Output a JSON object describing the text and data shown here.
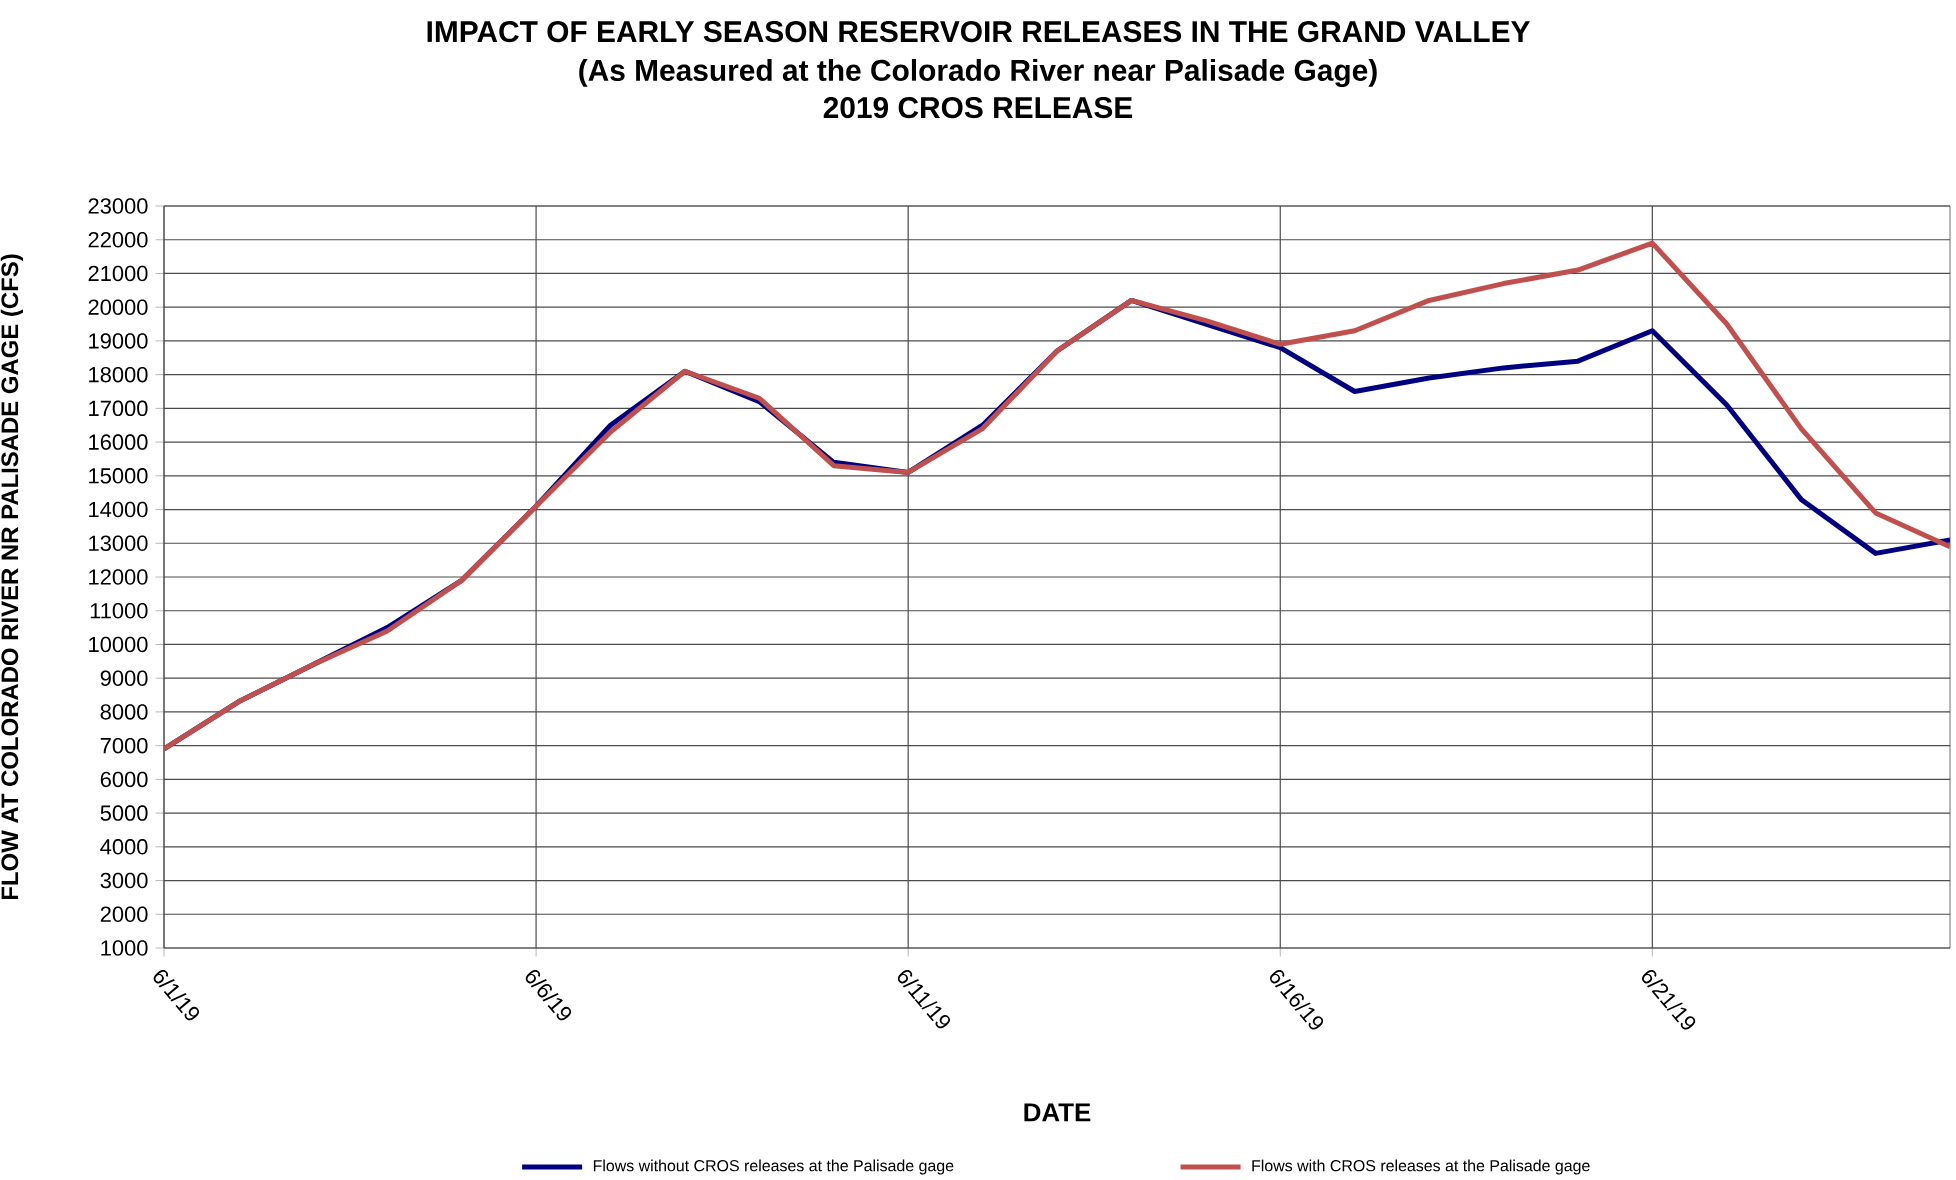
{
  "chart_data": {
    "type": "line",
    "title": "IMPACT OF EARLY SEASON RESERVOIR RELEASES IN THE GRAND VALLEY",
    "subtitle": "(As Measured at the Colorado River near Palisade Gage)",
    "annotations": [
      "2019 CROS RELEASE"
    ],
    "xlabel": "DATE",
    "ylabel": "FLOW AT COLORADO RIVER NR PALISADE GAGE (CFS)",
    "x": [
      "2019-06-01",
      "2019-06-02",
      "2019-06-03",
      "2019-06-04",
      "2019-06-05",
      "2019-06-06",
      "2019-06-07",
      "2019-06-08",
      "2019-06-09",
      "2019-06-10",
      "2019-06-11",
      "2019-06-12",
      "2019-06-13",
      "2019-06-14",
      "2019-06-15",
      "2019-06-16",
      "2019-06-17",
      "2019-06-18",
      "2019-06-19",
      "2019-06-20",
      "2019-06-21",
      "2019-06-22",
      "2019-06-23",
      "2019-06-24",
      "2019-06-25"
    ],
    "series": [
      {
        "name": "Flows without CROS releases at the Palisade gage",
        "color": "#000080",
        "values": [
          6900,
          8300,
          9400,
          10500,
          11900,
          14100,
          16500,
          18100,
          17200,
          15400,
          15100,
          16500,
          18700,
          20200,
          19500,
          18800,
          17500,
          17900,
          18200,
          18400,
          19300,
          17100,
          14300,
          12700,
          13100
        ]
      },
      {
        "name": "Flows with CROS releases at the Palisade gage",
        "color": "#c0504d",
        "values": [
          6900,
          8300,
          9400,
          10400,
          11900,
          14100,
          16300,
          18100,
          17300,
          15300,
          15100,
          16400,
          18700,
          20200,
          19600,
          18900,
          19300,
          20200,
          20700,
          21100,
          21900,
          19500,
          16400,
          13900,
          12900
        ]
      }
    ],
    "xlim": [
      "2019-06-01",
      "2019-06-25"
    ],
    "xticks": [
      {
        "value": "2019-06-01",
        "label": "6/1/19"
      },
      {
        "value": "2019-06-06",
        "label": "6/6/19"
      },
      {
        "value": "2019-06-11",
        "label": "6/11/19"
      },
      {
        "value": "2019-06-16",
        "label": "6/16/19"
      },
      {
        "value": "2019-06-21",
        "label": "6/21/19"
      }
    ],
    "ylim": [
      1000,
      23000
    ],
    "yticks": [
      1000,
      2000,
      3000,
      4000,
      5000,
      6000,
      7000,
      8000,
      9000,
      10000,
      11000,
      12000,
      13000,
      14000,
      15000,
      16000,
      17000,
      18000,
      19000,
      20000,
      21000,
      22000,
      23000
    ],
    "grid": true,
    "legend": "bottom",
    "marker": "none",
    "line_style": "solid"
  }
}
